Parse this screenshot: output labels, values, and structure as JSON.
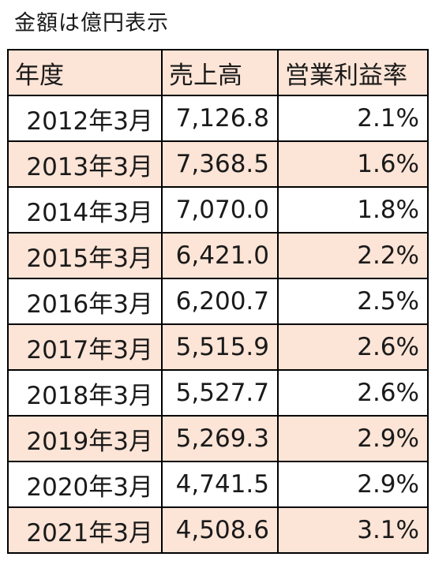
{
  "caption": "金額は億円表示",
  "colors": {
    "header_fill": "#fce4d6",
    "alt_row_fill": "#fce4d6",
    "border": "#000000"
  },
  "table": {
    "headers": [
      "年度",
      "売上高",
      "営業利益率"
    ],
    "rows": [
      [
        "2012年3月",
        "7,126.8",
        "2.1%"
      ],
      [
        "2013年3月",
        "7,368.5",
        "1.6%"
      ],
      [
        "2014年3月",
        "7,070.0",
        "1.8%"
      ],
      [
        "2015年3月",
        "6,421.0",
        "2.2%"
      ],
      [
        "2016年3月",
        "6,200.7",
        "2.5%"
      ],
      [
        "2017年3月",
        "5,515.9",
        "2.6%"
      ],
      [
        "2018年3月",
        "5,527.7",
        "2.6%"
      ],
      [
        "2019年3月",
        "5,269.3",
        "2.9%"
      ],
      [
        "2020年3月",
        "4,741.5",
        "2.9%"
      ],
      [
        "2021年3月",
        "4,508.6",
        "3.1%"
      ]
    ]
  }
}
